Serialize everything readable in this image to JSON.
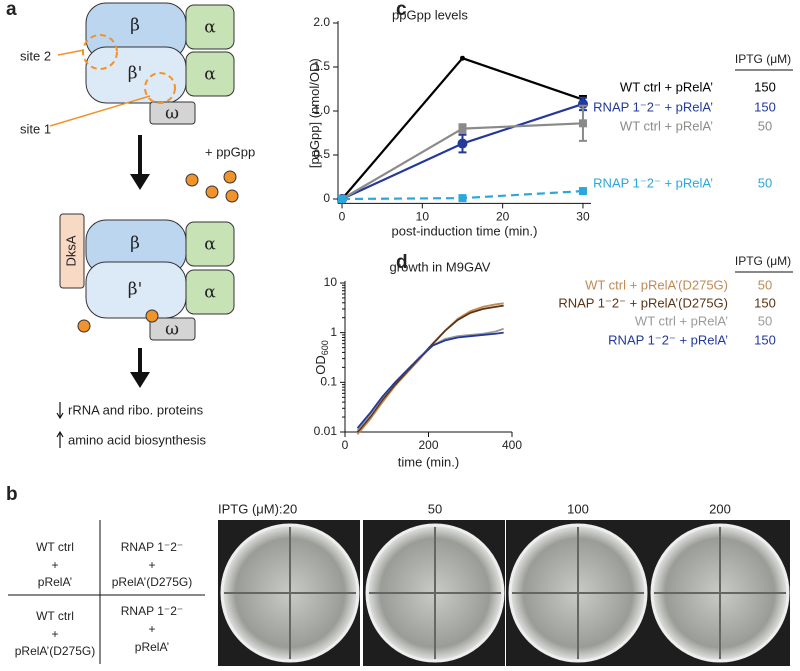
{
  "panel_labels": [
    "a",
    "b",
    "c",
    "d"
  ],
  "diagram": {
    "top_complex": [
      "β",
      "α",
      "β'",
      "α",
      "ω"
    ],
    "sites": [
      "site 2",
      "site 1"
    ],
    "ligand": "+ ppGpp",
    "bottom_complex": [
      "DksA",
      "β",
      "α",
      "β'",
      "α",
      "ω"
    ],
    "effects": [
      "rRNA and ribo. proteins",
      "amino acid biosynthesis"
    ]
  },
  "plates": {
    "iptg_label": "IPTG (μM):",
    "concentrations": [
      20,
      50,
      100,
      200
    ],
    "strain_grid": [
      [
        "WT ctrl",
        "+",
        "pRelA’"
      ],
      [
        "RNAP 1⁻2⁻",
        "+",
        "pRelA’(D275G)"
      ],
      [
        "WT ctrl",
        "+",
        "pRelA’(D275G)"
      ],
      [
        "RNAP 1⁻2⁻",
        "+",
        "pRelA’"
      ]
    ]
  },
  "chart_data": [
    {
      "type": "line",
      "title": "ppGpp levels",
      "x_label": "post-induction time (min.)",
      "y_label": "[ppGpp] (nmol/OD)",
      "legend_header": "IPTG (μM)",
      "xlim": [
        -0.5,
        31
      ],
      "ylim": [
        -0.05,
        2
      ],
      "xticks": [
        0,
        10,
        20,
        30
      ],
      "yticks": [
        0,
        0.5,
        {
          "value": 1,
          "label": "1.0"
        },
        1.5,
        {
          "value": 2,
          "label": "2.0"
        }
      ],
      "x": [
        0,
        15,
        30
      ],
      "series": [
        {
          "name": "WT ctrl + pRelA’",
          "iptg": 150,
          "color": "#000000",
          "marker": "none",
          "dashed": false,
          "values": [
            0,
            1.6,
            1.13
          ],
          "errors": [
            null,
            null,
            0.04
          ]
        },
        {
          "name": "RNAP 1⁻2⁻ + pRelA’",
          "iptg": 150,
          "color": "#23399a",
          "marker": "circle",
          "dashed": false,
          "values": [
            0,
            0.63,
            1.08
          ],
          "errors": [
            null,
            0.1,
            0.07
          ]
        },
        {
          "name": "WT ctrl + pRelA’",
          "iptg": 50,
          "color": "#8a8a8a",
          "marker": "square",
          "dashed": false,
          "values": [
            0,
            0.8,
            0.86
          ],
          "errors": [
            null,
            0.05,
            0.2
          ]
        },
        {
          "name": "RNAP 1⁻2⁻ + pRelA’",
          "iptg": 50,
          "color": "#2aa7dc",
          "marker": "square",
          "dashed": true,
          "values": [
            0,
            0.01,
            0.09
          ],
          "errors": [
            null,
            null,
            null
          ]
        }
      ]
    },
    {
      "type": "line",
      "title": "growth in M9GAV",
      "x_label": "time (min.)",
      "y_label": "OD",
      "y_label_sub": "600",
      "legend_header": "IPTG (μM)",
      "log_y": true,
      "xlim": [
        0,
        400
      ],
      "ylim": [
        0.01,
        10
      ],
      "xticks": [
        0,
        200,
        400
      ],
      "yticks": [
        0.01,
        0.1,
        1,
        10
      ],
      "x": [
        30,
        60,
        90,
        120,
        150,
        180,
        210,
        240,
        270,
        300,
        330,
        360,
        380
      ],
      "series": [
        {
          "name": "WT ctrl + pRelA’(D275G)",
          "iptg": 50,
          "color": "#c08a55",
          "marker": "none",
          "dashed": false,
          "values": [
            0.009,
            0.018,
            0.04,
            0.085,
            0.16,
            0.3,
            0.58,
            1.1,
            1.9,
            2.7,
            3.3,
            3.7,
            3.9
          ]
        },
        {
          "name": "RNAP 1⁻2⁻ + pRelA’(D275G)",
          "iptg": 150,
          "color": "#5a3414",
          "marker": "none",
          "dashed": false,
          "values": [
            0.01,
            0.02,
            0.045,
            0.09,
            0.17,
            0.32,
            0.6,
            1.1,
            1.8,
            2.5,
            3.0,
            3.3,
            3.5
          ]
        },
        {
          "name": "WT ctrl + pRelA’",
          "iptg": 50,
          "color": "#9a9a9a",
          "marker": "none",
          "dashed": false,
          "values": [
            0.011,
            0.022,
            0.05,
            0.1,
            0.18,
            0.33,
            0.55,
            0.75,
            0.85,
            0.9,
            0.95,
            1.05,
            1.2
          ]
        },
        {
          "name": "RNAP 1⁻2⁻ + pRelA’",
          "iptg": 150,
          "color": "#23399a",
          "marker": "none",
          "dashed": false,
          "values": [
            0.012,
            0.024,
            0.052,
            0.1,
            0.18,
            0.32,
            0.55,
            0.7,
            0.8,
            0.85,
            0.9,
            0.95,
            1.0
          ]
        }
      ]
    }
  ]
}
